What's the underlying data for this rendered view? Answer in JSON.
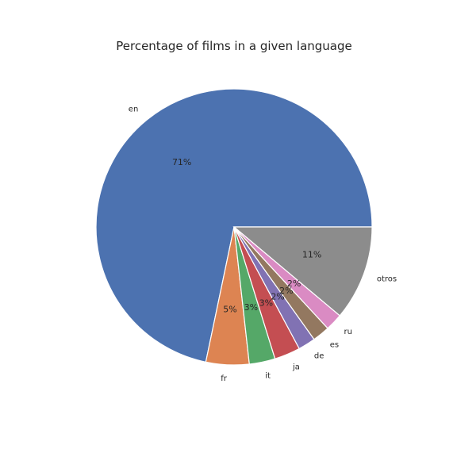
{
  "chart_data": {
    "type": "pie",
    "title": "Percentage of films in a given language",
    "categories": [
      "en",
      "fr",
      "it",
      "ja",
      "de",
      "es",
      "ru",
      "otros"
    ],
    "values": [
      71,
      5,
      3,
      3,
      2,
      2,
      2,
      11
    ],
    "value_labels": [
      "71%",
      "5%",
      "3%",
      "3%",
      "2%",
      "2%",
      "2%",
      "11%"
    ],
    "colors": [
      "#4c72b0",
      "#dd8452",
      "#55a868",
      "#c44e52",
      "#8172b3",
      "#937860",
      "#da8bc3",
      "#8c8c8c"
    ],
    "start_angle_deg": 0,
    "direction": "counterclockwise",
    "legend": "none"
  }
}
